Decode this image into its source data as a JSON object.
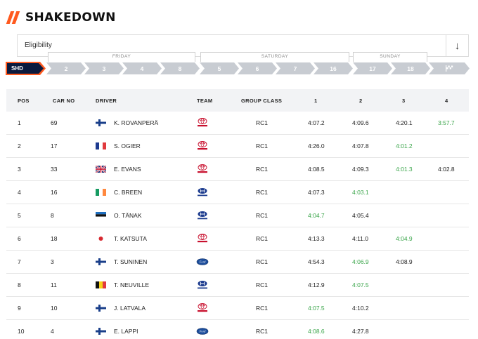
{
  "page": {
    "title": "SHAKEDOWN"
  },
  "eligibility": {
    "label": "Eligibility",
    "sort_icon": "↓"
  },
  "days": {
    "friday": "FRIDAY",
    "saturday": "SATURDAY",
    "sunday": "SUNDAY"
  },
  "stages": {
    "active": "SHD",
    "items": [
      "2",
      "3",
      "4",
      "8",
      "5",
      "6",
      "7",
      "16",
      "17",
      "18",
      ""
    ],
    "finish_icon": "checkered-flag-icon"
  },
  "columns": {
    "pos": "POS",
    "car_no": "CAR NO",
    "driver": "DRIVER",
    "team": "TEAM",
    "group_class": "GROUP CLASS",
    "run1": "1",
    "run2": "2",
    "run3": "3",
    "run4": "4"
  },
  "colors": {
    "accent": "#ff5a1f",
    "navy": "#0b1a3d",
    "best_time": "#3aa54a",
    "stage_inactive": "#c8ccd2"
  },
  "rows": [
    {
      "pos": "1",
      "car": "69",
      "flag": "finland",
      "driver": "K. ROVANPERÄ",
      "team": "toyota",
      "cls": "RC1",
      "t1": "4:07.2",
      "t2": "4:09.6",
      "t3": "4:20.1",
      "t4": "3:57.7",
      "best": 4
    },
    {
      "pos": "2",
      "car": "17",
      "flag": "france",
      "driver": "S. OGIER",
      "team": "toyota",
      "cls": "RC1",
      "t1": "4:26.0",
      "t2": "4:07.8",
      "t3": "4:01.2",
      "t4": "",
      "best": 3
    },
    {
      "pos": "3",
      "car": "33",
      "flag": "uk",
      "driver": "E. EVANS",
      "team": "toyota",
      "cls": "RC1",
      "t1": "4:08.5",
      "t2": "4:09.3",
      "t3": "4:01.3",
      "t4": "4:02.8",
      "best": 3
    },
    {
      "pos": "4",
      "car": "16",
      "flag": "ireland",
      "driver": "C. BREEN",
      "team": "hyundai",
      "cls": "RC1",
      "t1": "4:07.3",
      "t2": "4:03.1",
      "t3": "",
      "t4": "",
      "best": 2
    },
    {
      "pos": "5",
      "car": "8",
      "flag": "estonia",
      "driver": "O. TÄNAK",
      "team": "hyundai",
      "cls": "RC1",
      "t1": "4:04.7",
      "t2": "4:05.4",
      "t3": "",
      "t4": "",
      "best": 1
    },
    {
      "pos": "6",
      "car": "18",
      "flag": "japan",
      "driver": "T. KATSUTA",
      "team": "toyota",
      "cls": "RC1",
      "t1": "4:13.3",
      "t2": "4:11.0",
      "t3": "4:04.9",
      "t4": "",
      "best": 3
    },
    {
      "pos": "7",
      "car": "3",
      "flag": "finland",
      "driver": "T. SUNINEN",
      "team": "ford",
      "cls": "RC1",
      "t1": "4:54.3",
      "t2": "4:06.9",
      "t3": "4:08.9",
      "t4": "",
      "best": 2
    },
    {
      "pos": "8",
      "car": "11",
      "flag": "belgium",
      "driver": "T. NEUVILLE",
      "team": "hyundai",
      "cls": "RC1",
      "t1": "4:12.9",
      "t2": "4:07.5",
      "t3": "",
      "t4": "",
      "best": 2
    },
    {
      "pos": "9",
      "car": "10",
      "flag": "finland",
      "driver": "J. LATVALA",
      "team": "toyota",
      "cls": "RC1",
      "t1": "4:07.5",
      "t2": "4:10.2",
      "t3": "",
      "t4": "",
      "best": 1
    },
    {
      "pos": "10",
      "car": "4",
      "flag": "finland",
      "driver": "E. LAPPI",
      "team": "ford",
      "cls": "RC1",
      "t1": "4:08.6",
      "t2": "4:27.8",
      "t3": "",
      "t4": "",
      "best": 1
    }
  ]
}
